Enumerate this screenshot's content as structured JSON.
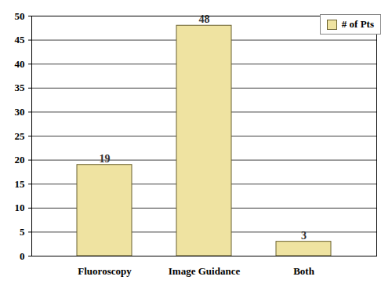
{
  "chart_data": {
    "type": "bar",
    "categories": [
      "Fluoroscopy",
      "Image Guidance",
      "Both"
    ],
    "series": [
      {
        "name": "# of Pts",
        "color": "#efe3a1",
        "values": [
          19,
          48,
          3
        ]
      }
    ],
    "ylim": [
      0,
      50
    ],
    "yticks": [
      0,
      5,
      10,
      15,
      20,
      25,
      30,
      35,
      40,
      45,
      50
    ],
    "grid": true,
    "legend": "top-right",
    "data_labels": true
  }
}
